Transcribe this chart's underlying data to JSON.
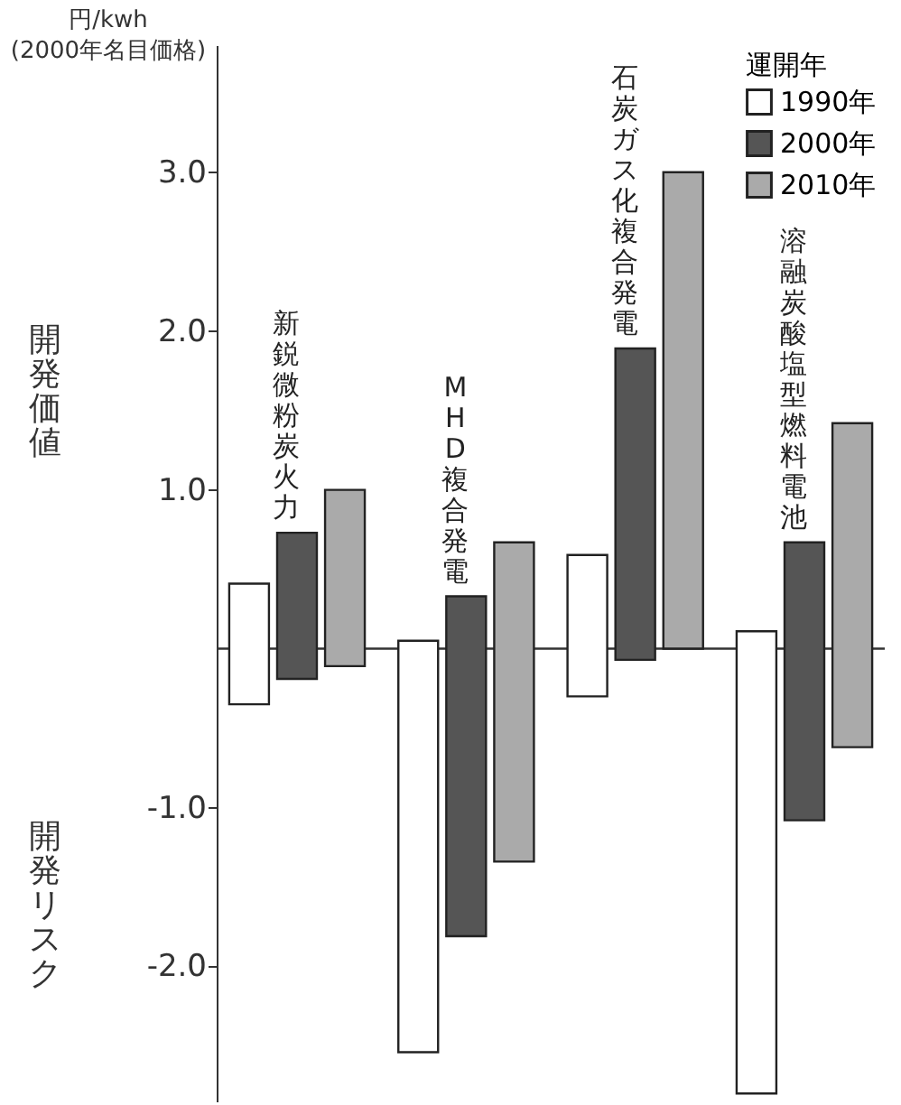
{
  "chart_data": {
    "type": "bar",
    "ylabel": "円/kwh (2000年名目価格)",
    "legend_title": "運開年",
    "annotations": [
      "開発価値",
      "開発リスク"
    ],
    "categories": [
      "新鋭微粉炭火力",
      "MHD複合発電",
      "石炭ガス化複合発電",
      "溶融炭酸塩型燃料電池"
    ],
    "series": [
      {
        "name": "1990年",
        "color": "#ffffff",
        "base": [
          -0.35,
          -2.54,
          -0.3,
          -2.8
        ],
        "values": [
          0.76,
          2.59,
          0.89,
          2.91
        ]
      },
      {
        "name": "2000年",
        "color": "#555555",
        "base": [
          -0.19,
          -1.81,
          -0.07,
          -1.08
        ],
        "values": [
          0.92,
          2.14,
          1.96,
          1.75
        ]
      },
      {
        "name": "2010年",
        "color": "#aaaaaa",
        "base": [
          -0.11,
          -1.34,
          0.0,
          -0.62
        ],
        "values": [
          1.11,
          2.01,
          3.0,
          2.04
        ]
      }
    ],
    "ylim": [
      -2.85,
      3.8
    ],
    "yticks": [
      {
        "value": -2,
        "label": "-2.0"
      },
      {
        "value": -1,
        "label": "-1.0"
      },
      {
        "value": 1,
        "label": "1.0"
      },
      {
        "value": 2,
        "label": "2.0"
      },
      {
        "value": 3,
        "label": "3.0"
      }
    ],
    "ref_lines": [
      {
        "axis": "y",
        "value": 0
      }
    ],
    "grid": false,
    "legend": "top right",
    "tick_labels": "y"
  }
}
